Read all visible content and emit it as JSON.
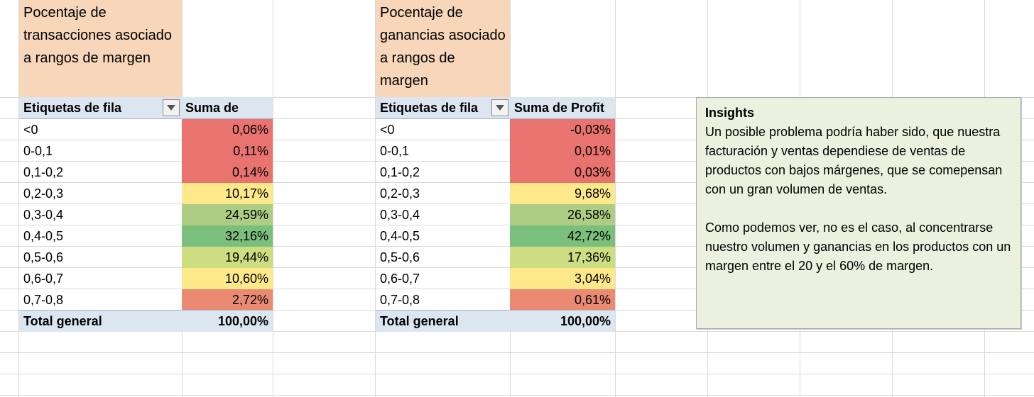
{
  "table1": {
    "title": "Pocentaje de transacciones asociado a rangos de margen",
    "header_label": "Etiquetas de fila",
    "header_value": "Suma de Quantity",
    "rows": [
      {
        "label": "<0",
        "value": "0,06%"
      },
      {
        "label": "0-0,1",
        "value": "0,11%"
      },
      {
        "label": "0,1-0,2",
        "value": "0,14%"
      },
      {
        "label": "0,2-0,3",
        "value": "10,17%"
      },
      {
        "label": "0,3-0,4",
        "value": "24,59%"
      },
      {
        "label": "0,4-0,5",
        "value": "32,16%"
      },
      {
        "label": "0,5-0,6",
        "value": "19,44%"
      },
      {
        "label": "0,6-0,7",
        "value": "10,60%"
      },
      {
        "label": "0,7-0,8",
        "value": "2,72%"
      }
    ],
    "total_label": "Total general",
    "total_value": "100,00%"
  },
  "table2": {
    "title": "Pocentaje de ganancias asociado a rangos de margen",
    "header_label": "Etiquetas de fila",
    "header_value": "Suma de Profit",
    "rows": [
      {
        "label": "<0",
        "value": "-0,03%"
      },
      {
        "label": "0-0,1",
        "value": "0,01%"
      },
      {
        "label": "0,1-0,2",
        "value": "0,03%"
      },
      {
        "label": "0,2-0,3",
        "value": "9,68%"
      },
      {
        "label": "0,3-0,4",
        "value": "26,58%"
      },
      {
        "label": "0,4-0,5",
        "value": "42,72%"
      },
      {
        "label": "0,5-0,6",
        "value": "17,36%"
      },
      {
        "label": "0,6-0,7",
        "value": "3,04%"
      },
      {
        "label": "0,7-0,8",
        "value": "0,61%"
      }
    ],
    "total_label": "Total general",
    "total_value": "100,00%"
  },
  "insights": {
    "title": "Insights",
    "paragraph1": "Un posible problema podría haber sido, que nuestra facturación y ventas dependiese de ventas de productos con bajos márgenes, que se comepensan con un gran volumen de ventas.",
    "paragraph2": "Como podemos ver, no es el caso, al concentrarse nuestro volumen y ganancias en los productos con un margen entre el 20 y el 60% de margen."
  },
  "colors": {
    "title_fill": "#f7d6b9",
    "header_fill": "#dce6f1",
    "scale_red": "#e8736f",
    "scale_orange": "#ea8a72",
    "scale_yellow": "#fde98a",
    "scale_light_green": "#aecd84",
    "scale_green": "#7bbf7c",
    "scale_yellow_green": "#ccdd82",
    "insights_fill": "#ebf1de"
  }
}
